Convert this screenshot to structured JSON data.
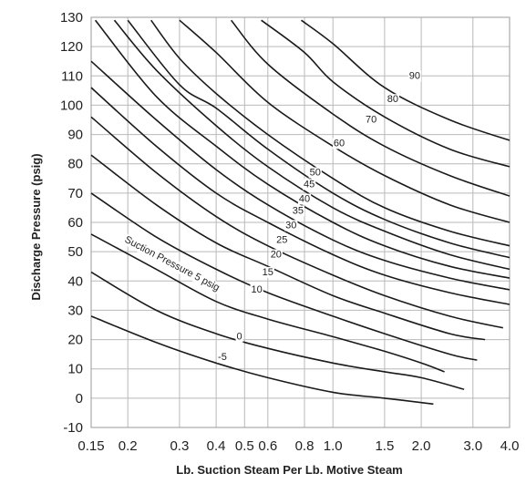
{
  "chart_data": {
    "type": "line",
    "title": "",
    "xlabel": "Lb. Suction Steam Per Lb. Motive Steam",
    "ylabel": "Discharge Pressure (psig)",
    "x_scale": "log",
    "xlim": [
      0.15,
      4.0
    ],
    "ylim": [
      -10,
      130
    ],
    "grid": true,
    "legend": "none",
    "x_ticks": [
      0.15,
      0.2,
      0.3,
      0.4,
      0.5,
      0.6,
      0.8,
      1.0,
      1.5,
      2.0,
      3.0,
      4.0
    ],
    "x_tick_labels": [
      "0.15",
      "0.2",
      "0.3",
      "0.4",
      "0.5",
      "0.6",
      "0.8",
      "1.0",
      "1.5",
      "2.0",
      "3.0",
      "4.0"
    ],
    "y_ticks": [
      -10,
      0,
      10,
      20,
      30,
      40,
      50,
      60,
      70,
      80,
      90,
      100,
      110,
      120,
      130
    ],
    "y_tick_labels": [
      "-10",
      "0",
      "10",
      "20",
      "30",
      "40",
      "50",
      "60",
      "70",
      "80",
      "90",
      "100",
      "110",
      "120",
      "130"
    ],
    "series": [
      {
        "name": "-5",
        "label": "-5",
        "label_at": [
          0.42,
          13
        ],
        "points": [
          [
            0.15,
            28
          ],
          [
            0.25,
            19
          ],
          [
            0.4,
            12
          ],
          [
            0.6,
            7
          ],
          [
            1.0,
            2
          ],
          [
            1.5,
            0
          ],
          [
            2.2,
            -2
          ]
        ]
      },
      {
        "name": "0",
        "label": "0",
        "label_at": [
          0.48,
          20
        ],
        "points": [
          [
            0.15,
            43
          ],
          [
            0.25,
            30
          ],
          [
            0.4,
            22
          ],
          [
            0.6,
            17
          ],
          [
            1.0,
            12
          ],
          [
            1.5,
            9
          ],
          [
            2.0,
            7
          ],
          [
            2.8,
            3
          ]
        ]
      },
      {
        "name": "Suction Pressure 5 psig",
        "label": "Suction Pressure 5 psig",
        "label_at": [
          0.28,
          45
        ],
        "points": [
          [
            0.15,
            56
          ],
          [
            0.25,
            44
          ],
          [
            0.4,
            33
          ],
          [
            0.6,
            27
          ],
          [
            1.0,
            21
          ],
          [
            1.5,
            16
          ],
          [
            2.0,
            12
          ],
          [
            2.4,
            9
          ]
        ]
      },
      {
        "name": "10",
        "label": "10",
        "label_at": [
          0.55,
          36
        ],
        "points": [
          [
            0.15,
            70
          ],
          [
            0.25,
            55
          ],
          [
            0.4,
            44
          ],
          [
            0.6,
            36
          ],
          [
            1.0,
            28
          ],
          [
            1.5,
            22
          ],
          [
            2.5,
            15
          ],
          [
            3.1,
            13
          ]
        ]
      },
      {
        "name": "15",
        "label": "15",
        "label_at": [
          0.6,
          42
        ],
        "points": [
          [
            0.15,
            83
          ],
          [
            0.25,
            66
          ],
          [
            0.4,
            53
          ],
          [
            0.6,
            45
          ],
          [
            1.0,
            35
          ],
          [
            1.5,
            29
          ],
          [
            2.5,
            22
          ],
          [
            3.3,
            20
          ]
        ]
      },
      {
        "name": "20",
        "label": "20",
        "label_at": [
          0.64,
          48
        ],
        "points": [
          [
            0.15,
            96
          ],
          [
            0.25,
            77
          ],
          [
            0.4,
            62
          ],
          [
            0.6,
            52
          ],
          [
            1.0,
            42
          ],
          [
            1.5,
            35
          ],
          [
            2.5,
            28
          ],
          [
            3.8,
            24
          ]
        ]
      },
      {
        "name": "25",
        "label": "25",
        "label_at": [
          0.67,
          53
        ],
        "points": [
          [
            0.15,
            106
          ],
          [
            0.25,
            86
          ],
          [
            0.4,
            70
          ],
          [
            0.6,
            60
          ],
          [
            1.0,
            49
          ],
          [
            1.5,
            42
          ],
          [
            2.5,
            36
          ],
          [
            4.0,
            32
          ]
        ]
      },
      {
        "name": "30",
        "label": "30",
        "label_at": [
          0.72,
          58
        ],
        "points": [
          [
            0.15,
            115
          ],
          [
            0.25,
            95
          ],
          [
            0.4,
            78
          ],
          [
            0.6,
            66
          ],
          [
            1.0,
            54
          ],
          [
            1.5,
            47
          ],
          [
            2.5,
            41
          ],
          [
            4.0,
            37
          ]
        ]
      },
      {
        "name": "35",
        "label": "35",
        "label_at": [
          0.76,
          63
        ],
        "points": [
          [
            0.155,
            129
          ],
          [
            0.25,
            103
          ],
          [
            0.4,
            86
          ],
          [
            0.6,
            73
          ],
          [
            1.0,
            60
          ],
          [
            1.5,
            52
          ],
          [
            2.5,
            45
          ],
          [
            4.0,
            41
          ]
        ]
      },
      {
        "name": "40",
        "label": "40",
        "label_at": [
          0.8,
          67
        ],
        "points": [
          [
            0.18,
            129
          ],
          [
            0.25,
            112
          ],
          [
            0.4,
            93
          ],
          [
            0.6,
            79
          ],
          [
            1.0,
            65
          ],
          [
            1.5,
            57
          ],
          [
            2.5,
            49
          ],
          [
            4.0,
            44
          ]
        ]
      },
      {
        "name": "45",
        "label": "45",
        "label_at": [
          0.83,
          72
        ],
        "points": [
          [
            0.2,
            129
          ],
          [
            0.3,
            107
          ],
          [
            0.4,
            99
          ],
          [
            0.6,
            85
          ],
          [
            1.0,
            70
          ],
          [
            1.5,
            61
          ],
          [
            2.5,
            53
          ],
          [
            4.0,
            48
          ]
        ]
      },
      {
        "name": "50",
        "label": "50",
        "label_at": [
          0.87,
          76
        ],
        "points": [
          [
            0.24,
            129
          ],
          [
            0.3,
            116
          ],
          [
            0.4,
            104
          ],
          [
            0.6,
            90
          ],
          [
            1.0,
            75
          ],
          [
            1.5,
            65
          ],
          [
            2.5,
            57
          ],
          [
            4.0,
            52
          ]
        ]
      },
      {
        "name": "60",
        "label": "60",
        "label_at": [
          1.05,
          86
        ],
        "points": [
          [
            0.3,
            129
          ],
          [
            0.4,
            118
          ],
          [
            0.6,
            101
          ],
          [
            1.0,
            86
          ],
          [
            1.5,
            76
          ],
          [
            2.5,
            66
          ],
          [
            4.0,
            60
          ]
        ]
      },
      {
        "name": "70",
        "label": "70",
        "label_at": [
          1.35,
          94
        ],
        "points": [
          [
            0.45,
            129
          ],
          [
            0.6,
            114
          ],
          [
            1.0,
            97
          ],
          [
            1.5,
            86
          ],
          [
            2.5,
            76
          ],
          [
            4.0,
            69
          ]
        ]
      },
      {
        "name": "80",
        "label": "80",
        "label_at": [
          1.6,
          101
        ],
        "points": [
          [
            0.57,
            129
          ],
          [
            0.8,
            118
          ],
          [
            1.0,
            108
          ],
          [
            1.5,
            96
          ],
          [
            2.5,
            85
          ],
          [
            4.0,
            79
          ]
        ]
      },
      {
        "name": "90",
        "label": "90",
        "label_at": [
          1.9,
          109
        ],
        "points": [
          [
            0.78,
            129
          ],
          [
            1.0,
            121
          ],
          [
            1.5,
            106
          ],
          [
            2.5,
            95
          ],
          [
            4.0,
            88
          ]
        ]
      }
    ]
  }
}
